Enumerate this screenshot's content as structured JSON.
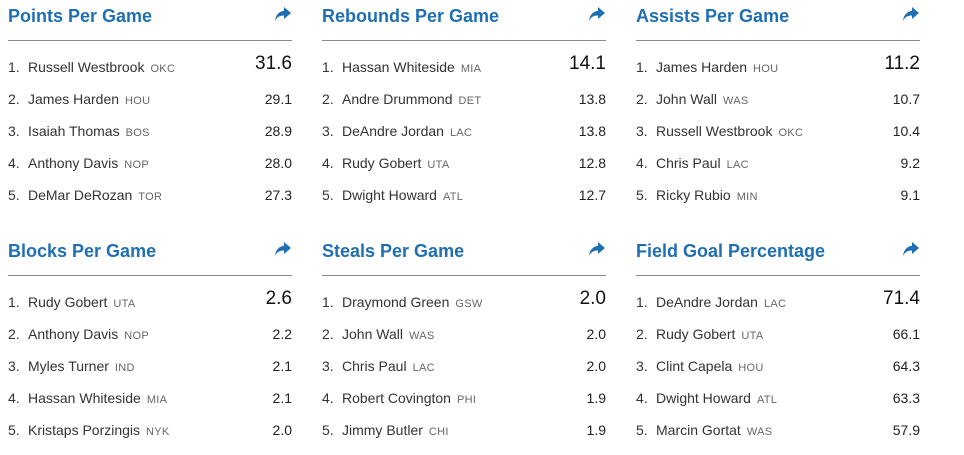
{
  "panels": [
    {
      "title": "Points Per Game",
      "rows": [
        {
          "rank": "1.",
          "name": "Russell Westbrook",
          "team": "OKC",
          "value": "31.6"
        },
        {
          "rank": "2.",
          "name": "James Harden",
          "team": "HOU",
          "value": "29.1"
        },
        {
          "rank": "3.",
          "name": "Isaiah Thomas",
          "team": "BOS",
          "value": "28.9"
        },
        {
          "rank": "4.",
          "name": "Anthony Davis",
          "team": "NOP",
          "value": "28.0"
        },
        {
          "rank": "5.",
          "name": "DeMar DeRozan",
          "team": "TOR",
          "value": "27.3"
        }
      ]
    },
    {
      "title": "Rebounds Per Game",
      "rows": [
        {
          "rank": "1.",
          "name": "Hassan Whiteside",
          "team": "MIA",
          "value": "14.1"
        },
        {
          "rank": "2.",
          "name": "Andre Drummond",
          "team": "DET",
          "value": "13.8"
        },
        {
          "rank": "3.",
          "name": "DeAndre Jordan",
          "team": "LAC",
          "value": "13.8"
        },
        {
          "rank": "4.",
          "name": "Rudy Gobert",
          "team": "UTA",
          "value": "12.8"
        },
        {
          "rank": "5.",
          "name": "Dwight Howard",
          "team": "ATL",
          "value": "12.7"
        }
      ]
    },
    {
      "title": "Assists Per Game",
      "rows": [
        {
          "rank": "1.",
          "name": "James Harden",
          "team": "HOU",
          "value": "11.2"
        },
        {
          "rank": "2.",
          "name": "John Wall",
          "team": "WAS",
          "value": "10.7"
        },
        {
          "rank": "3.",
          "name": "Russell Westbrook",
          "team": "OKC",
          "value": "10.4"
        },
        {
          "rank": "4.",
          "name": "Chris Paul",
          "team": "LAC",
          "value": "9.2"
        },
        {
          "rank": "5.",
          "name": "Ricky Rubio",
          "team": "MIN",
          "value": "9.1"
        }
      ]
    },
    {
      "title": "Blocks Per Game",
      "rows": [
        {
          "rank": "1.",
          "name": "Rudy Gobert",
          "team": "UTA",
          "value": "2.6"
        },
        {
          "rank": "2.",
          "name": "Anthony Davis",
          "team": "NOP",
          "value": "2.2"
        },
        {
          "rank": "3.",
          "name": "Myles Turner",
          "team": "IND",
          "value": "2.1"
        },
        {
          "rank": "4.",
          "name": "Hassan Whiteside",
          "team": "MIA",
          "value": "2.1"
        },
        {
          "rank": "5.",
          "name": "Kristaps Porzingis",
          "team": "NYK",
          "value": "2.0"
        }
      ]
    },
    {
      "title": "Steals Per Game",
      "rows": [
        {
          "rank": "1.",
          "name": "Draymond Green",
          "team": "GSW",
          "value": "2.0"
        },
        {
          "rank": "2.",
          "name": "John Wall",
          "team": "WAS",
          "value": "2.0"
        },
        {
          "rank": "3.",
          "name": "Chris Paul",
          "team": "LAC",
          "value": "2.0"
        },
        {
          "rank": "4.",
          "name": "Robert Covington",
          "team": "PHI",
          "value": "1.9"
        },
        {
          "rank": "5.",
          "name": "Jimmy Butler",
          "team": "CHI",
          "value": "1.9"
        }
      ]
    },
    {
      "title": "Field Goal Percentage",
      "rows": [
        {
          "rank": "1.",
          "name": "DeAndre Jordan",
          "team": "LAC",
          "value": "71.4"
        },
        {
          "rank": "2.",
          "name": "Rudy Gobert",
          "team": "UTA",
          "value": "66.1"
        },
        {
          "rank": "3.",
          "name": "Clint Capela",
          "team": "HOU",
          "value": "64.3"
        },
        {
          "rank": "4.",
          "name": "Dwight Howard",
          "team": "ATL",
          "value": "63.3"
        },
        {
          "rank": "5.",
          "name": "Marcin Gortat",
          "team": "WAS",
          "value": "57.9"
        }
      ]
    }
  ],
  "icons": {
    "share": "share-arrow-icon"
  },
  "colors": {
    "accent": "#1f6fb2",
    "divider": "#8a8a8a"
  }
}
